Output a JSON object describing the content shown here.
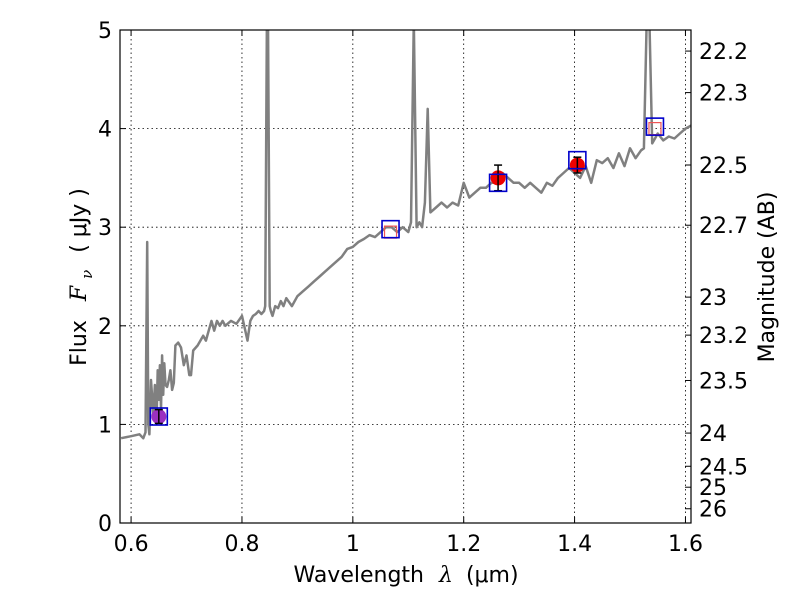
{
  "chart_data": {
    "type": "line",
    "xlabel_prefix": "Wavelength",
    "xlabel_var": "λ",
    "xlabel_unit": "(μm)",
    "ylabel_prefix": "Flux",
    "ylabel_var": "F",
    "ylabel_sub": "ν",
    "ylabel_unit": "( μJy )",
    "y2label": "Magnitude (AB)",
    "xlim": [
      0.58,
      1.61
    ],
    "ylim": [
      0,
      5
    ],
    "x_ticks": [
      {
        "v": 0.6,
        "label": "0.6"
      },
      {
        "v": 0.8,
        "label": "0.8"
      },
      {
        "v": 1.0,
        "label": "1"
      },
      {
        "v": 1.2,
        "label": "1.2"
      },
      {
        "v": 1.4,
        "label": "1.4"
      },
      {
        "v": 1.6,
        "label": "1.6"
      }
    ],
    "y_ticks": [
      {
        "v": 0,
        "label": "0"
      },
      {
        "v": 1,
        "label": "1"
      },
      {
        "v": 2,
        "label": "2"
      },
      {
        "v": 3,
        "label": "3"
      },
      {
        "v": 4,
        "label": "4"
      },
      {
        "v": 5,
        "label": "5"
      }
    ],
    "mag_ticks": [
      {
        "mag": 22.2,
        "label": "22.2"
      },
      {
        "mag": 22.3,
        "label": "22.3"
      },
      {
        "mag": 22.5,
        "label": "22.5"
      },
      {
        "mag": 22.7,
        "label": "22.7"
      },
      {
        "mag": 23.0,
        "label": "23"
      },
      {
        "mag": 23.2,
        "label": "23.2"
      },
      {
        "mag": 23.5,
        "label": "23.5"
      },
      {
        "mag": 24.0,
        "label": "24"
      },
      {
        "mag": 24.5,
        "label": "24.5"
      },
      {
        "mag": 25.0,
        "label": "25"
      },
      {
        "mag": 26.0,
        "label": "26"
      }
    ],
    "grid": true,
    "series": [
      {
        "color": "#808080",
        "x": [
          0.582,
          0.6,
          0.615,
          0.622,
          0.626,
          0.629,
          0.631,
          0.633,
          0.636,
          0.64,
          0.643,
          0.646,
          0.648,
          0.65,
          0.652,
          0.654,
          0.656,
          0.658,
          0.66,
          0.662,
          0.665,
          0.668,
          0.671,
          0.674,
          0.677,
          0.68,
          0.685,
          0.69,
          0.695,
          0.7,
          0.705,
          0.708,
          0.712,
          0.72,
          0.73,
          0.735,
          0.74,
          0.745,
          0.75,
          0.755,
          0.76,
          0.765,
          0.77,
          0.78,
          0.79,
          0.8,
          0.81,
          0.815,
          0.82,
          0.825,
          0.83,
          0.835,
          0.84,
          0.842,
          0.845,
          0.847,
          0.85,
          0.852,
          0.855,
          0.86,
          0.865,
          0.87,
          0.875,
          0.88,
          0.89,
          0.9,
          0.91,
          0.92,
          0.93,
          0.94,
          0.95,
          0.96,
          0.97,
          0.98,
          0.99,
          1.0,
          1.01,
          1.02,
          1.03,
          1.04,
          1.05,
          1.06,
          1.07,
          1.08,
          1.09,
          1.1,
          1.105,
          1.11,
          1.115,
          1.12,
          1.125,
          1.13,
          1.135,
          1.14,
          1.15,
          1.16,
          1.17,
          1.18,
          1.19,
          1.2,
          1.21,
          1.22,
          1.23,
          1.24,
          1.25,
          1.26,
          1.27,
          1.28,
          1.29,
          1.3,
          1.31,
          1.32,
          1.33,
          1.34,
          1.35,
          1.36,
          1.37,
          1.38,
          1.39,
          1.4,
          1.41,
          1.42,
          1.43,
          1.44,
          1.45,
          1.46,
          1.47,
          1.48,
          1.49,
          1.5,
          1.51,
          1.52,
          1.525,
          1.53,
          1.535,
          1.54,
          1.545,
          1.55,
          1.56,
          1.57,
          1.58,
          1.59,
          1.6,
          1.61
        ],
        "y": [
          0.86,
          0.88,
          0.9,
          0.86,
          0.92,
          2.85,
          1.0,
          0.9,
          1.45,
          1.1,
          1.4,
          1.05,
          1.55,
          1.25,
          1.6,
          1.15,
          1.7,
          1.3,
          1.62,
          1.4,
          1.38,
          1.45,
          1.55,
          1.35,
          1.42,
          1.8,
          1.83,
          1.78,
          1.6,
          1.7,
          1.5,
          1.5,
          1.75,
          1.8,
          1.9,
          1.85,
          1.95,
          2.05,
          1.95,
          2.05,
          2.0,
          2.05,
          2.0,
          2.05,
          2.02,
          2.1,
          1.85,
          2.05,
          2.1,
          2.12,
          2.15,
          2.12,
          2.15,
          2.2,
          5.1,
          5.1,
          2.2,
          2.15,
          2.1,
          2.2,
          2.18,
          2.25,
          2.2,
          2.28,
          2.2,
          2.3,
          2.35,
          2.4,
          2.45,
          2.5,
          2.55,
          2.6,
          2.65,
          2.7,
          2.78,
          2.8,
          2.85,
          2.88,
          2.92,
          2.9,
          2.95,
          3.0,
          3.0,
          2.95,
          3.0,
          2.95,
          3.05,
          5.1,
          3.0,
          3.05,
          3.0,
          3.25,
          4.2,
          3.15,
          3.2,
          3.25,
          3.2,
          3.25,
          3.22,
          3.45,
          3.3,
          3.35,
          3.4,
          3.4,
          3.45,
          3.45,
          3.55,
          3.5,
          3.45,
          3.45,
          3.4,
          3.45,
          3.4,
          3.35,
          3.45,
          3.42,
          3.5,
          3.55,
          3.6,
          3.55,
          3.5,
          3.62,
          3.45,
          3.68,
          3.65,
          3.7,
          3.6,
          3.75,
          3.62,
          3.8,
          3.7,
          3.78,
          3.8,
          5.1,
          5.1,
          3.85,
          3.9,
          3.95,
          3.88,
          3.92,
          3.9,
          3.95,
          4.0,
          4.03
        ]
      }
    ],
    "model_photometry": [
      {
        "x": 0.65,
        "y": 1.08
      },
      {
        "x": 1.068,
        "y": 2.98
      },
      {
        "x": 1.262,
        "y": 3.45
      },
      {
        "x": 1.405,
        "y": 3.68
      },
      {
        "x": 1.545,
        "y": 4.02
      }
    ],
    "observed_photometry": [
      {
        "x": 0.65,
        "y": 1.08,
        "err": 0.07,
        "color": "#9b30c0"
      },
      {
        "x": 1.068,
        "y": 2.95,
        "err": 0.0,
        "color": "none"
      },
      {
        "x": 1.262,
        "y": 3.5,
        "err": 0.13,
        "color": "#ee0000"
      },
      {
        "x": 1.405,
        "y": 3.63,
        "err": 0.08,
        "color": "#ee0000"
      },
      {
        "x": 1.545,
        "y": 4.0,
        "err": 0.0,
        "color": "none"
      }
    ],
    "colors": {
      "spectrum": "#808080",
      "model_box": "#0000cc",
      "detection": "#ee0000",
      "upper_box": "#ee5555",
      "purple": "#9b30c0"
    }
  }
}
